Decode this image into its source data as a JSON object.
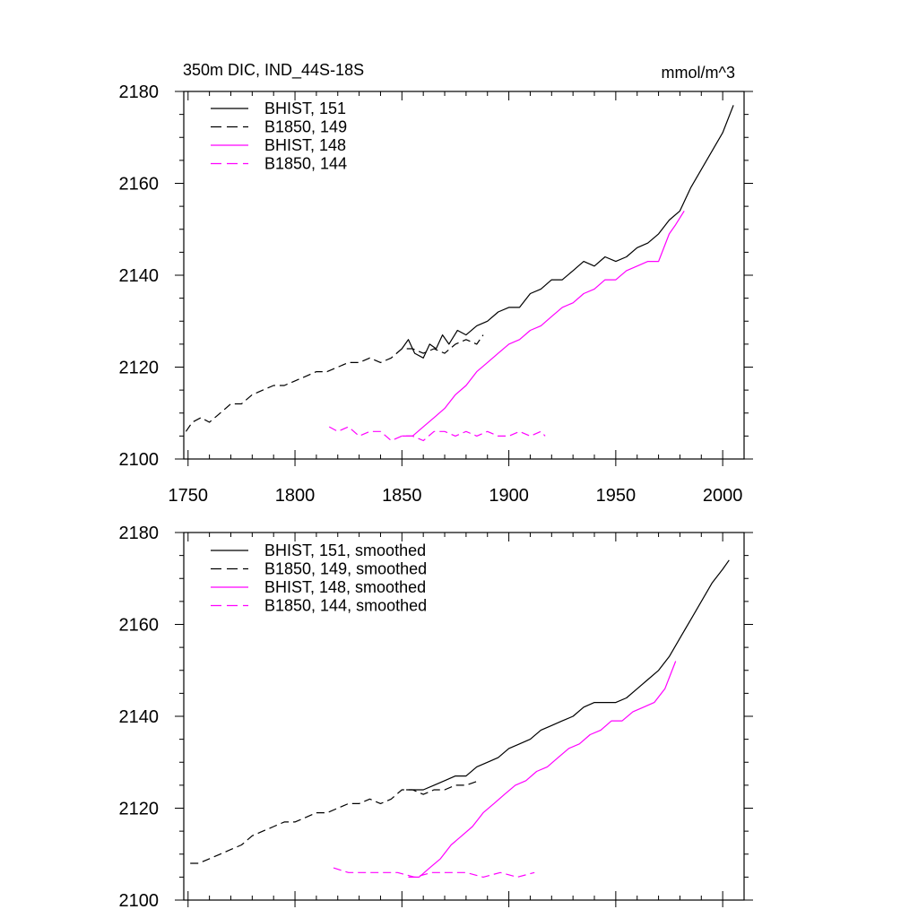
{
  "figure": {
    "title_left": "350m DIC, IND_44S-18S",
    "title_right": "mmol/m^3"
  },
  "chart_data": [
    {
      "type": "line",
      "name": "raw",
      "xlim": [
        1748,
        2010
      ],
      "ylim": [
        2100,
        2180
      ],
      "x_ticks": [
        1750,
        1800,
        1850,
        1900,
        1950,
        2000
      ],
      "y_ticks": [
        2100,
        2120,
        2140,
        2160,
        2180
      ],
      "show_x_tick_labels": true,
      "series": [
        {
          "name": "BHIST, 151",
          "color": "#000000",
          "dash": "solid",
          "x": [
            1850,
            1853,
            1856,
            1860,
            1863,
            1866,
            1869,
            1872,
            1876,
            1880,
            1885,
            1890,
            1895,
            1900,
            1905,
            1910,
            1915,
            1920,
            1925,
            1930,
            1935,
            1940,
            1945,
            1950,
            1955,
            1960,
            1965,
            1970,
            1975,
            1980,
            1985,
            1990,
            1995,
            2000,
            2005
          ],
          "values": [
            2124,
            2126,
            2123,
            2122,
            2125,
            2124,
            2127,
            2125,
            2128,
            2127,
            2129,
            2130,
            2132,
            2133,
            2133,
            2136,
            2137,
            2139,
            2139,
            2141,
            2143,
            2142,
            2144,
            2143,
            2144,
            2146,
            2147,
            2149,
            2152,
            2154,
            2159,
            2163,
            2167,
            2171,
            2177
          ]
        },
        {
          "name": "B1850, 149",
          "color": "#000000",
          "dash": "long",
          "x": [
            1749,
            1752,
            1756,
            1760,
            1765,
            1770,
            1775,
            1780,
            1785,
            1790,
            1795,
            1800,
            1805,
            1810,
            1815,
            1820,
            1825,
            1830,
            1835,
            1840,
            1845,
            1850,
            1855,
            1860,
            1865,
            1870,
            1875,
            1880,
            1885,
            1888
          ],
          "values": [
            2106,
            2108,
            2109,
            2108,
            2110,
            2112,
            2112,
            2114,
            2115,
            2116,
            2116,
            2117,
            2118,
            2119,
            2119,
            2120,
            2121,
            2121,
            2122,
            2121,
            2122,
            2124,
            2124,
            2123,
            2124,
            2123,
            2125,
            2126,
            2125,
            2127
          ]
        },
        {
          "name": "BHIST, 148",
          "color": "#ff00ff",
          "dash": "solid",
          "x": [
            1850,
            1855,
            1860,
            1865,
            1870,
            1875,
            1880,
            1885,
            1890,
            1895,
            1900,
            1905,
            1910,
            1915,
            1920,
            1925,
            1930,
            1935,
            1940,
            1945,
            1950,
            1955,
            1960,
            1965,
            1970,
            1975,
            1978,
            1982
          ],
          "values": [
            2105,
            2105,
            2107,
            2109,
            2111,
            2114,
            2116,
            2119,
            2121,
            2123,
            2125,
            2126,
            2128,
            2129,
            2131,
            2133,
            2134,
            2136,
            2137,
            2139,
            2139,
            2141,
            2142,
            2143,
            2143,
            2149,
            2151,
            2154
          ]
        },
        {
          "name": "B1850, 144",
          "color": "#ff00ff",
          "dash": "long",
          "x": [
            1816,
            1820,
            1825,
            1830,
            1835,
            1840,
            1845,
            1850,
            1855,
            1860,
            1865,
            1870,
            1875,
            1880,
            1885,
            1890,
            1895,
            1900,
            1905,
            1910,
            1915,
            1917
          ],
          "values": [
            2107,
            2106,
            2107,
            2105,
            2106,
            2106,
            2104,
            2105,
            2105,
            2104,
            2106,
            2106,
            2105,
            2106,
            2105,
            2106,
            2105,
            2105,
            2106,
            2105,
            2106,
            2105
          ]
        }
      ]
    },
    {
      "type": "line",
      "name": "smoothed",
      "xlim": [
        1748,
        2010
      ],
      "ylim": [
        2100,
        2180
      ],
      "x_ticks": [
        1750,
        1800,
        1850,
        1900,
        1950,
        2000
      ],
      "y_ticks": [
        2100,
        2120,
        2140,
        2160,
        2180
      ],
      "show_x_tick_labels": false,
      "series": [
        {
          "name": "BHIST, 151, smoothed",
          "color": "#000000",
          "dash": "solid",
          "x": [
            1852,
            1856,
            1860,
            1865,
            1870,
            1875,
            1880,
            1885,
            1890,
            1895,
            1900,
            1905,
            1910,
            1915,
            1920,
            1925,
            1930,
            1935,
            1940,
            1945,
            1950,
            1955,
            1960,
            1965,
            1970,
            1975,
            1980,
            1985,
            1990,
            1995,
            2000,
            2003
          ],
          "values": [
            2124,
            2124,
            2124,
            2125,
            2126,
            2127,
            2127,
            2129,
            2130,
            2131,
            2133,
            2134,
            2135,
            2137,
            2138,
            2139,
            2140,
            2142,
            2143,
            2143,
            2143,
            2144,
            2146,
            2148,
            2150,
            2153,
            2157,
            2161,
            2165,
            2169,
            2172,
            2174
          ]
        },
        {
          "name": "B1850, 149, smoothed",
          "color": "#000000",
          "dash": "long",
          "x": [
            1751,
            1755,
            1760,
            1765,
            1770,
            1775,
            1780,
            1785,
            1790,
            1795,
            1800,
            1805,
            1810,
            1815,
            1820,
            1825,
            1830,
            1835,
            1840,
            1845,
            1850,
            1855,
            1860,
            1865,
            1870,
            1875,
            1880,
            1886
          ],
          "values": [
            2108,
            2108,
            2109,
            2110,
            2111,
            2112,
            2114,
            2115,
            2116,
            2117,
            2117,
            2118,
            2119,
            2119,
            2120,
            2121,
            2121,
            2122,
            2121,
            2122,
            2124,
            2124,
            2123,
            2124,
            2124,
            2125,
            2125,
            2126
          ]
        },
        {
          "name": "BHIST, 148, smoothed",
          "color": "#ff00ff",
          "dash": "solid",
          "x": [
            1853,
            1858,
            1863,
            1868,
            1873,
            1878,
            1883,
            1888,
            1893,
            1898,
            1903,
            1908,
            1913,
            1918,
            1923,
            1928,
            1933,
            1938,
            1943,
            1948,
            1953,
            1958,
            1963,
            1968,
            1973,
            1978
          ],
          "values": [
            2105,
            2105,
            2107,
            2109,
            2112,
            2114,
            2116,
            2119,
            2121,
            2123,
            2125,
            2126,
            2128,
            2129,
            2131,
            2133,
            2134,
            2136,
            2137,
            2139,
            2139,
            2141,
            2142,
            2143,
            2146,
            2152
          ]
        },
        {
          "name": "B1850, 144, smoothed",
          "color": "#ff00ff",
          "dash": "long",
          "x": [
            1818,
            1825,
            1832,
            1840,
            1848,
            1856,
            1864,
            1872,
            1880,
            1888,
            1896,
            1904,
            1912
          ],
          "values": [
            2107,
            2106,
            2106,
            2106,
            2106,
            2105,
            2106,
            2106,
            2106,
            2105,
            2106,
            2105,
            2106
          ]
        }
      ]
    }
  ]
}
